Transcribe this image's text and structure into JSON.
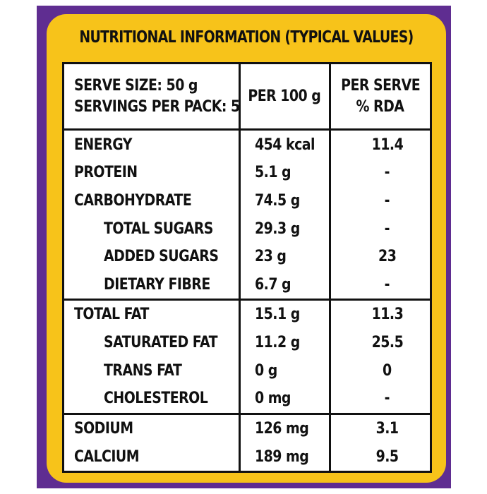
{
  "title": "NUTRITIONAL INFORMATION (TYPICAL VALUES)",
  "header": {
    "serve_size": "SERVE SIZE: 50 g",
    "servings_per_pack": "SERVINGS PER PACK: 5",
    "per_100g": "PER 100 g",
    "per_serve": "PER SERVE",
    "rda": "% RDA"
  },
  "rows": [
    {
      "name": "ENERGY",
      "per_100g": "454 kcal",
      "rda": "11.4"
    },
    {
      "name": "PROTEIN",
      "per_100g": "5.1 g",
      "rda": "-"
    },
    {
      "name": "CARBOHYDRATE",
      "per_100g": "74.5 g",
      "rda": "-"
    },
    {
      "name": "TOTAL SUGARS",
      "per_100g": "29.3 g",
      "rda": "-"
    },
    {
      "name": "ADDED SUGARS",
      "per_100g": "23 g",
      "rda": "23"
    },
    {
      "name": "DIETARY FIBRE",
      "per_100g": "6.7 g",
      "rda": "-"
    },
    {
      "name": "TOTAL FAT",
      "per_100g": "15.1 g",
      "rda": "11.3"
    },
    {
      "name": "SATURATED FAT",
      "per_100g": "11.2 g",
      "rda": "25.5"
    },
    {
      "name": "TRANS FAT",
      "per_100g": "0 g",
      "rda": "0"
    },
    {
      "name": "CHOLESTEROL",
      "per_100g": "0 mg",
      "rda": "-"
    },
    {
      "name": "SODIUM",
      "per_100g": "126 mg",
      "rda": "3.1"
    },
    {
      "name": "CALCIUM",
      "per_100g": "189 mg",
      "rda": "9.5"
    }
  ],
  "colors": {
    "panel": "#5f2d91",
    "banner": "#f7c31a",
    "text": "#111111"
  }
}
